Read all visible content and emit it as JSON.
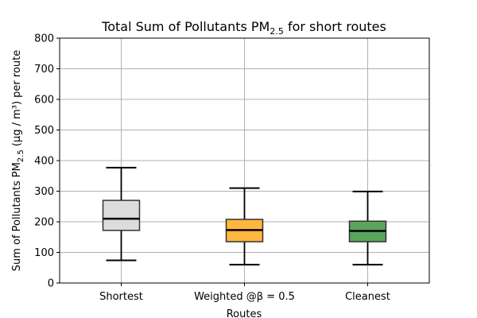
{
  "chart_data": {
    "type": "box",
    "title_main": "Total Sum of Pollutants PM",
    "title_sub": "2.5",
    "title_tail": " for short routes",
    "xlabel": "Routes",
    "ylabel_main": "Sum of Pollutants PM",
    "ylabel_sub": "2.5",
    "ylabel_tail": " (μg / m³) per route",
    "ylim": [
      0,
      800
    ],
    "yticks": [
      "0",
      "100",
      "200",
      "300",
      "400",
      "500",
      "600",
      "700",
      "800"
    ],
    "grid": true,
    "categories": [
      "Shortest",
      "Weighted @β = 0.5",
      "Cleanest"
    ],
    "boxes": [
      {
        "name": "Shortest",
        "whisker_low": 74,
        "q1": 172,
        "median": 210,
        "q3": 270,
        "whisker_high": 377,
        "color": "#dcdcdc"
      },
      {
        "name": "Weighted @β = 0.5",
        "whisker_low": 60,
        "q1": 135,
        "median": 173,
        "q3": 208,
        "whisker_high": 310,
        "color": "#ffb73f"
      },
      {
        "name": "Cleanest",
        "whisker_low": 60,
        "q1": 135,
        "median": 170,
        "q3": 202,
        "whisker_high": 299,
        "color": "#58a55c"
      }
    ]
  }
}
